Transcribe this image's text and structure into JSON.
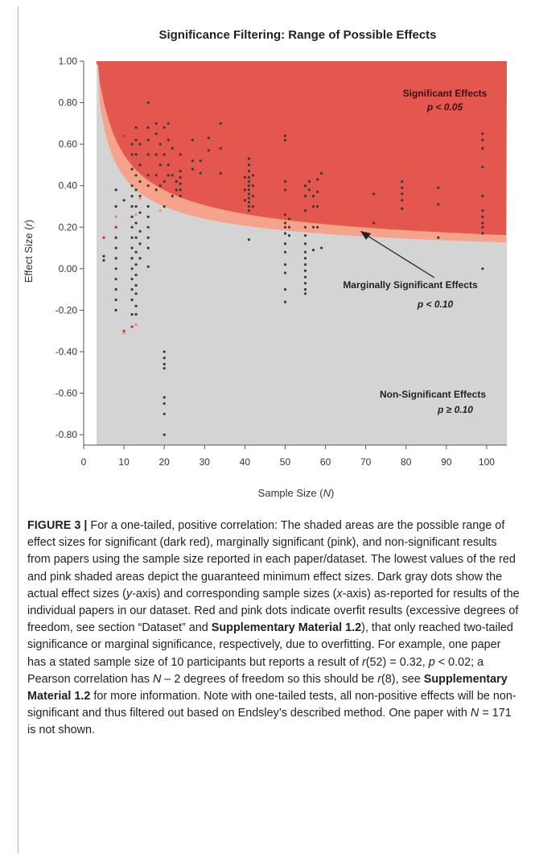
{
  "chart_data": {
    "type": "scatter",
    "title": "Significance Filtering: Range of Possible Effects",
    "xlabel": "Sample Size (",
    "xlabel_var": "N",
    "xlabel_close": ")",
    "ylabel": "Effect Size (",
    "ylabel_var": "r",
    "ylabel_close": ")",
    "xlim": [
      0,
      105
    ],
    "ylim": [
      -0.85,
      1.0
    ],
    "x_ticks": [
      0,
      10,
      20,
      30,
      40,
      50,
      60,
      70,
      80,
      90,
      100
    ],
    "x_tick_labels": [
      "0",
      "10",
      "20",
      "30",
      "40",
      "50",
      "60",
      "70",
      "80",
      "90",
      "100"
    ],
    "y_ticks": [
      1.0,
      0.8,
      0.6,
      0.4,
      0.2,
      0.0,
      -0.2,
      -0.4,
      -0.6,
      -0.8
    ],
    "y_tick_labels": [
      "1.00",
      "0.80",
      "0.60",
      "0.40",
      "0.20",
      "0.00",
      "-0.20",
      "-0.40",
      "-0.60",
      "-0.80"
    ],
    "grid": false,
    "colors": {
      "significant": "#e4574e",
      "marginal": "#f6a38c",
      "nonsignificant": "#d4d4d4",
      "dot_gray": "#3a3a3a",
      "dot_red": "#d42a2a",
      "dot_pink": "#f08a80"
    },
    "annotations": {
      "significant_label": "Significant Effects",
      "significant_p": "p < 0.05",
      "marginal_label": "Marginally Significant Effects",
      "marginal_p": "p < 0.10",
      "nonsig_label": "Non-Significant Effects",
      "nonsig_p": "p ≥ 0.10"
    },
    "series": [
      {
        "color_key": "dot_gray",
        "points": [
          [
            5,
            0.06
          ],
          [
            5,
            0.04
          ],
          [
            8,
            0.38
          ],
          [
            8,
            0.3
          ],
          [
            8,
            0.25
          ],
          [
            8,
            0.2
          ],
          [
            8,
            0.15
          ],
          [
            8,
            0.1
          ],
          [
            8,
            0.05
          ],
          [
            8,
            0.0
          ],
          [
            8,
            -0.05
          ],
          [
            8,
            -0.1
          ],
          [
            8,
            -0.15
          ],
          [
            8,
            -0.2
          ],
          [
            10,
            0.33
          ],
          [
            12,
            0.6
          ],
          [
            12,
            0.55
          ],
          [
            12,
            0.48
          ],
          [
            12,
            0.4
          ],
          [
            12,
            0.35
          ],
          [
            12,
            0.3
          ],
          [
            12,
            0.25
          ],
          [
            12,
            0.2
          ],
          [
            12,
            0.15
          ],
          [
            12,
            0.1
          ],
          [
            12,
            0.05
          ],
          [
            12,
            0.0
          ],
          [
            12,
            -0.05
          ],
          [
            12,
            -0.1
          ],
          [
            12,
            -0.15
          ],
          [
            12,
            -0.22
          ],
          [
            13,
            0.68
          ],
          [
            13,
            0.62
          ],
          [
            13,
            0.55
          ],
          [
            13,
            0.45
          ],
          [
            13,
            0.38
          ],
          [
            13,
            0.3
          ],
          [
            13,
            0.22
          ],
          [
            13,
            0.15
          ],
          [
            13,
            0.08
          ],
          [
            13,
            0.02
          ],
          [
            13,
            -0.03
          ],
          [
            13,
            -0.08
          ],
          [
            13,
            -0.12
          ],
          [
            13,
            -0.18
          ],
          [
            13,
            -0.22
          ],
          [
            14,
            0.6
          ],
          [
            14,
            0.5
          ],
          [
            14,
            0.42
          ],
          [
            14,
            0.35
          ],
          [
            14,
            0.27
          ],
          [
            14,
            0.18
          ],
          [
            14,
            0.12
          ],
          [
            14,
            0.05
          ],
          [
            16,
            0.8
          ],
          [
            16,
            0.68
          ],
          [
            16,
            0.62
          ],
          [
            16,
            0.55
          ],
          [
            16,
            0.45
          ],
          [
            16,
            0.4
          ],
          [
            16,
            0.3
          ],
          [
            16,
            0.25
          ],
          [
            16,
            0.2
          ],
          [
            16,
            0.15
          ],
          [
            16,
            0.1
          ],
          [
            16,
            0.01
          ],
          [
            18,
            0.7
          ],
          [
            18,
            0.65
          ],
          [
            18,
            0.55
          ],
          [
            18,
            0.45
          ],
          [
            18,
            0.38
          ],
          [
            19,
            0.6
          ],
          [
            19,
            0.5
          ],
          [
            19,
            0.4
          ],
          [
            20,
            0.68
          ],
          [
            20,
            0.55
          ],
          [
            20,
            0.42
          ],
          [
            20,
            0.3
          ],
          [
            20,
            -0.4
          ],
          [
            20,
            -0.43
          ],
          [
            20,
            -0.46
          ],
          [
            20,
            -0.48
          ],
          [
            20,
            -0.62
          ],
          [
            20,
            -0.65
          ],
          [
            20,
            -0.7
          ],
          [
            20,
            -0.8
          ],
          [
            21,
            0.7
          ],
          [
            21,
            0.62
          ],
          [
            21,
            0.5
          ],
          [
            21,
            0.45
          ],
          [
            22,
            0.58
          ],
          [
            22,
            0.45
          ],
          [
            22,
            0.35
          ],
          [
            23,
            0.42
          ],
          [
            23,
            0.38
          ],
          [
            24,
            0.55
          ],
          [
            24,
            0.47
          ],
          [
            24,
            0.44
          ],
          [
            24,
            0.41
          ],
          [
            24,
            0.38
          ],
          [
            24,
            0.35
          ],
          [
            27,
            0.62
          ],
          [
            27,
            0.52
          ],
          [
            27,
            0.48
          ],
          [
            29,
            0.52
          ],
          [
            29,
            0.46
          ],
          [
            31,
            0.63
          ],
          [
            31,
            0.57
          ],
          [
            34,
            0.7
          ],
          [
            34,
            0.58
          ],
          [
            34,
            0.46
          ],
          [
            40,
            0.44
          ],
          [
            40,
            0.38
          ],
          [
            40,
            0.33
          ],
          [
            41,
            0.53
          ],
          [
            41,
            0.5
          ],
          [
            41,
            0.47
          ],
          [
            41,
            0.44
          ],
          [
            41,
            0.42
          ],
          [
            41,
            0.4
          ],
          [
            41,
            0.38
          ],
          [
            41,
            0.36
          ],
          [
            41,
            0.34
          ],
          [
            41,
            0.32
          ],
          [
            41,
            0.3
          ],
          [
            41,
            0.28
          ],
          [
            41,
            0.14
          ],
          [
            42,
            0.45
          ],
          [
            42,
            0.4
          ],
          [
            42,
            0.35
          ],
          [
            42,
            0.3
          ],
          [
            50,
            0.64
          ],
          [
            50,
            0.62
          ],
          [
            50,
            0.42
          ],
          [
            50,
            0.38
          ],
          [
            50,
            0.26
          ],
          [
            50,
            0.22
          ],
          [
            50,
            0.2
          ],
          [
            50,
            0.17
          ],
          [
            50,
            0.12
          ],
          [
            50,
            0.08
          ],
          [
            50,
            0.02
          ],
          [
            50,
            -0.02
          ],
          [
            50,
            -0.1
          ],
          [
            50,
            -0.16
          ],
          [
            51,
            0.24
          ],
          [
            51,
            0.2
          ],
          [
            51,
            0.16
          ],
          [
            55,
            0.4
          ],
          [
            55,
            0.35
          ],
          [
            55,
            0.28
          ],
          [
            55,
            0.2
          ],
          [
            55,
            0.16
          ],
          [
            55,
            0.12
          ],
          [
            55,
            0.08
          ],
          [
            55,
            0.05
          ],
          [
            55,
            0.02
          ],
          [
            55,
            -0.01
          ],
          [
            55,
            -0.04
          ],
          [
            55,
            -0.07
          ],
          [
            55,
            -0.1
          ],
          [
            55,
            -0.12
          ],
          [
            56,
            0.42
          ],
          [
            56,
            0.38
          ],
          [
            57,
            0.35
          ],
          [
            57,
            0.3
          ],
          [
            57,
            0.2
          ],
          [
            57,
            0.09
          ],
          [
            58,
            0.43
          ],
          [
            58,
            0.37
          ],
          [
            58,
            0.3
          ],
          [
            58,
            0.2
          ],
          [
            59,
            0.46
          ],
          [
            59,
            0.1
          ],
          [
            72,
            0.36
          ],
          [
            72,
            0.22
          ],
          [
            79,
            0.42
          ],
          [
            79,
            0.39
          ],
          [
            79,
            0.36
          ],
          [
            79,
            0.33
          ],
          [
            79,
            0.29
          ],
          [
            88,
            0.39
          ],
          [
            88,
            0.31
          ],
          [
            88,
            0.15
          ],
          [
            99,
            0.65
          ],
          [
            99,
            0.62
          ],
          [
            99,
            0.58
          ],
          [
            99,
            0.49
          ],
          [
            99,
            0.35
          ],
          [
            99,
            0.28
          ],
          [
            99,
            0.25
          ],
          [
            99,
            0.22
          ],
          [
            99,
            0.2
          ],
          [
            99,
            0.17
          ],
          [
            99,
            0.0
          ]
        ]
      },
      {
        "color_key": "dot_red",
        "points": [
          [
            5,
            0.15
          ],
          [
            8,
            0.2
          ],
          [
            10,
            0.64
          ],
          [
            10,
            -0.3
          ],
          [
            12,
            -0.28
          ]
        ]
      },
      {
        "color_key": "dot_pink",
        "points": [
          [
            8,
            0.25
          ],
          [
            10,
            -0.31
          ],
          [
            13,
            0.26
          ],
          [
            13,
            -0.27
          ],
          [
            14,
            0.34
          ],
          [
            19,
            0.28
          ]
        ]
      }
    ]
  },
  "caption": {
    "label": "FIGURE 3 |",
    "segments": [
      {
        "t": " For a one-tailed, positive correlation: The shaded areas are the possible range of effect sizes for significant (dark red), marginally significant (pink), and non-significant results from papers using the sample size reported in each paper/dataset. The lowest values of the red and pink shaded areas depict the guaranteed minimum effect sizes. Dark gray dots show the actual effect sizes (",
        "s": "n"
      },
      {
        "t": "y",
        "s": "i"
      },
      {
        "t": "-axis) and corresponding sample sizes (",
        "s": "n"
      },
      {
        "t": "x",
        "s": "i"
      },
      {
        "t": "-axis) as-reported for results of the individual papers in our dataset. Red and pink dots indicate overfit results (excessive degrees of freedom, see section “Dataset” and ",
        "s": "n"
      },
      {
        "t": "Supplementary Material 1.2",
        "s": "b"
      },
      {
        "t": "), that only reached two-tailed significance or marginal significance, respectively, due to overfitting. For example, one paper has a stated sample size of 10 participants but reports a result of ",
        "s": "n"
      },
      {
        "t": "r",
        "s": "i"
      },
      {
        "t": "(52) = 0.32, ",
        "s": "n"
      },
      {
        "t": "p",
        "s": "i"
      },
      {
        "t": " < 0.02; a Pearson correlation has ",
        "s": "n"
      },
      {
        "t": "N",
        "s": "i"
      },
      {
        "t": " – 2 degrees of freedom so this should be ",
        "s": "n"
      },
      {
        "t": "r",
        "s": "i"
      },
      {
        "t": "(8), see ",
        "s": "n"
      },
      {
        "t": "Supplementary Material 1.2",
        "s": "b"
      },
      {
        "t": " for more information. Note with one-tailed tests, all non-positive effects will be non-significant and thus filtered out based on Endsley’s described method. One paper with ",
        "s": "n"
      },
      {
        "t": "N",
        "s": "i"
      },
      {
        "t": " = 171 is not shown.",
        "s": "n"
      }
    ]
  }
}
